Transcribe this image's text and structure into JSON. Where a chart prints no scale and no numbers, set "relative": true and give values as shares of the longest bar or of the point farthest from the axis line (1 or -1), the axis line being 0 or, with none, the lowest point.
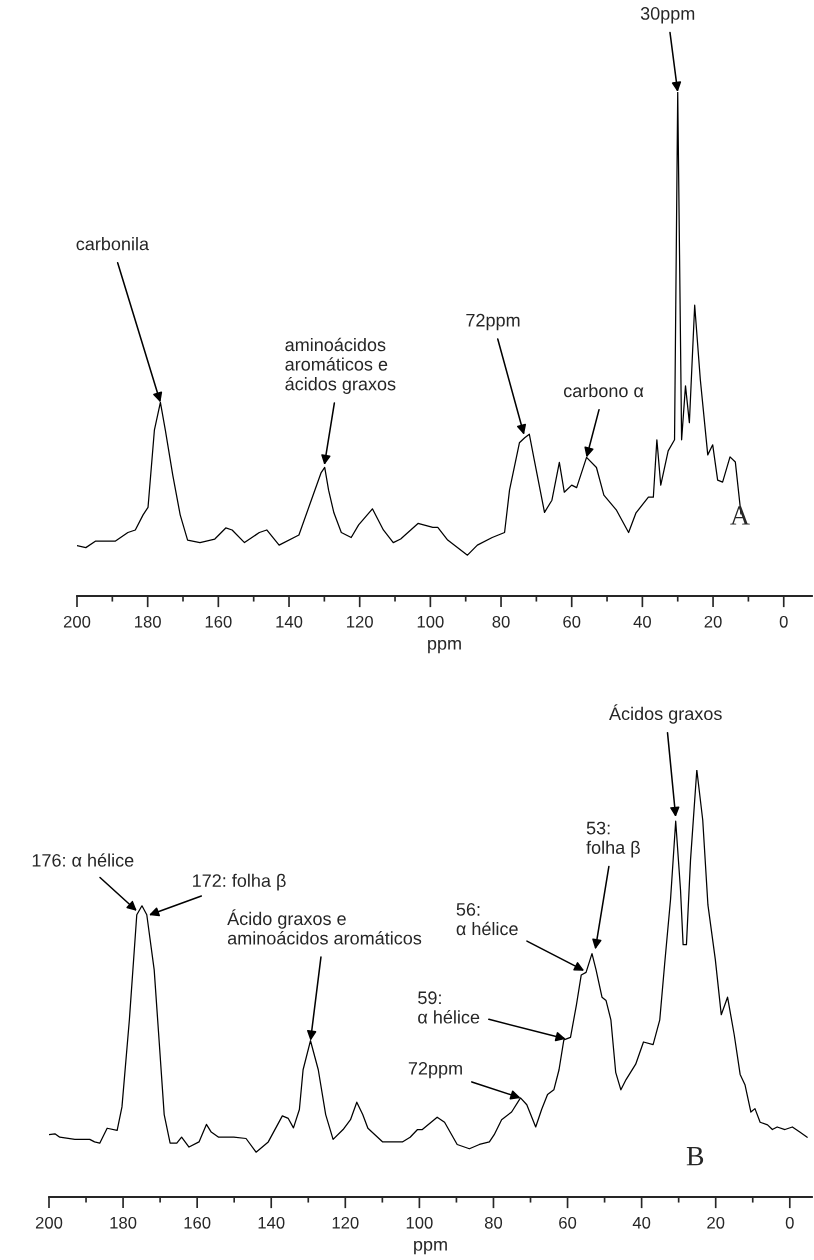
{
  "chart_data": [
    {
      "type": "line",
      "relative": true,
      "xlabel": "ppm",
      "xlim": [
        200,
        -8
      ],
      "xticks": [
        200,
        {
          "value": 190,
          "label": null
        },
        180,
        {
          "value": 170,
          "label": null
        },
        160,
        {
          "value": 150,
          "label": null
        },
        140,
        {
          "value": 130,
          "label": null
        },
        120,
        {
          "value": 110,
          "label": null
        },
        100,
        {
          "value": 90,
          "label": null
        },
        80,
        {
          "value": 70,
          "label": null
        },
        60,
        {
          "value": 50,
          "label": null
        },
        40,
        {
          "value": 30,
          "label": null
        },
        20,
        {
          "value": 10,
          "label": null
        },
        0
      ],
      "tick_labels": "x",
      "grid": false,
      "legend": false,
      "series": [
        {
          "color": "#000000",
          "x": [
            200.0,
            197.5,
            194.7,
            189.1,
            185.6,
            183.5,
            181.3,
            179.9,
            178.1,
            176.4,
            175.0,
            172.9,
            170.8,
            168.7,
            165.2,
            161.0,
            157.9,
            156.1,
            152.6,
            148.4,
            146.3,
            142.8,
            137.2,
            133.7,
            130.9,
            129.9,
            128.8,
            127.3,
            125.2,
            122.4,
            120.3,
            116.4,
            113.3,
            110.5,
            108.4,
            103.5,
            99.3,
            97.9,
            95.1,
            89.5,
            86.7,
            82.5,
            79.0,
            77.6,
            74.8,
            73.3,
            72.0,
            70.6,
            67.7,
            65.6,
            63.5,
            62.1,
            60.0,
            58.6,
            55.8,
            53.0,
            50.9,
            47.4,
            43.9,
            41.8,
            38.3,
            36.9,
            35.9,
            34.8,
            32.7,
            30.9,
            30.0,
            28.9,
            27.8,
            26.7,
            25.2,
            23.6,
            21.5,
            20.1,
            18.7,
            17.3,
            15.2,
            13.7,
            12.1
          ],
          "values": [
            0.1,
            0.096,
            0.109,
            0.109,
            0.126,
            0.131,
            0.161,
            0.176,
            0.329,
            0.384,
            0.329,
            0.24,
            0.161,
            0.111,
            0.106,
            0.113,
            0.135,
            0.131,
            0.106,
            0.126,
            0.131,
            0.101,
            0.121,
            0.19,
            0.245,
            0.255,
            0.21,
            0.165,
            0.126,
            0.116,
            0.141,
            0.173,
            0.131,
            0.106,
            0.113,
            0.144,
            0.136,
            0.136,
            0.111,
            0.081,
            0.101,
            0.116,
            0.126,
            0.21,
            0.304,
            0.314,
            0.321,
            0.27,
            0.166,
            0.19,
            0.265,
            0.206,
            0.22,
            0.215,
            0.275,
            0.255,
            0.2,
            0.171,
            0.126,
            0.165,
            0.196,
            0.196,
            0.31,
            0.22,
            0.288,
            0.31,
            1.0,
            0.31,
            0.417,
            0.344,
            0.577,
            0.429,
            0.28,
            0.3,
            0.23,
            0.226,
            0.276,
            0.266,
            0.163
          ]
        }
      ],
      "annotations": [
        {
          "text": "30ppm",
          "x": 30.0,
          "y": 1.0
        },
        {
          "text": "carbonila",
          "x": 176.4,
          "y": 0.384
        },
        {
          "text": "aminoácidos\naromáticos e\nácidos graxos",
          "x": 130.0,
          "y": 0.26
        },
        {
          "text": "72ppm",
          "x": 73.5,
          "y": 0.32
        },
        {
          "text": "carbono α",
          "x": 55.8,
          "y": 0.275
        },
        "A"
      ]
    },
    {
      "type": "line",
      "relative": true,
      "xlabel": "ppm",
      "xlim": [
        200,
        -6
      ],
      "xticks": [
        200,
        {
          "value": 190,
          "label": null
        },
        180,
        {
          "value": 170,
          "label": null
        },
        160,
        {
          "value": 150,
          "label": null
        },
        140,
        {
          "value": 130,
          "label": null
        },
        120,
        {
          "value": 110,
          "label": null
        },
        100,
        {
          "value": 90,
          "label": null
        },
        80,
        {
          "value": 70,
          "label": null
        },
        60,
        {
          "value": 50,
          "label": null
        },
        40,
        {
          "value": 30,
          "label": null
        },
        20,
        {
          "value": 10,
          "label": null
        },
        0
      ],
      "tick_labels": "x",
      "grid": false,
      "legend": false,
      "series": [
        {
          "color": "#000000",
          "x": [
            200.0,
            198.4,
            197.1,
            193.0,
            189.0,
            187.7,
            186.3,
            184.3,
            181.6,
            180.3,
            178.3,
            176.3,
            174.9,
            173.6,
            171.6,
            170.2,
            168.9,
            167.3,
            165.5,
            164.2,
            162.2,
            159.5,
            157.5,
            156.2,
            154.2,
            150.1,
            146.8,
            144.1,
            140.8,
            137.0,
            135.4,
            134.0,
            132.4,
            131.4,
            129.4,
            127.3,
            125.3,
            123.3,
            120.6,
            118.6,
            116.9,
            115.3,
            113.9,
            109.9,
            104.6,
            102.5,
            100.5,
            99.2,
            95.2,
            93.2,
            89.8,
            86.5,
            83.8,
            81.1,
            79.8,
            77.8,
            75.1,
            72.7,
            71.0,
            68.6,
            67.0,
            65.4,
            63.7,
            62.3,
            61.0,
            59.2,
            57.6,
            56.3,
            55.0,
            53.4,
            52.3,
            50.7,
            49.6,
            48.3,
            47.0,
            45.6,
            44.2,
            41.6,
            39.5,
            36.9,
            35.1,
            33.8,
            32.2,
            30.8,
            29.5,
            28.8,
            27.9,
            26.8,
            25.1,
            23.5,
            22.1,
            20.1,
            18.5,
            16.8,
            15.0,
            13.4,
            12.1,
            10.5,
            9.4,
            8.0,
            6.0,
            4.7,
            3.4,
            1.3,
            -0.7,
            -2.7,
            -4.7
          ],
          "values": [
            0.146,
            0.148,
            0.14,
            0.135,
            0.135,
            0.129,
            0.126,
            0.161,
            0.156,
            0.211,
            0.415,
            0.661,
            0.682,
            0.661,
            0.532,
            0.357,
            0.193,
            0.126,
            0.126,
            0.14,
            0.117,
            0.129,
            0.17,
            0.152,
            0.14,
            0.14,
            0.137,
            0.105,
            0.129,
            0.19,
            0.184,
            0.162,
            0.205,
            0.298,
            0.366,
            0.298,
            0.193,
            0.135,
            0.158,
            0.181,
            0.222,
            0.193,
            0.161,
            0.129,
            0.129,
            0.14,
            0.158,
            0.158,
            0.187,
            0.175,
            0.123,
            0.113,
            0.123,
            0.129,
            0.146,
            0.181,
            0.199,
            0.232,
            0.216,
            0.164,
            0.205,
            0.24,
            0.251,
            0.298,
            0.368,
            0.374,
            0.45,
            0.52,
            0.526,
            0.57,
            0.532,
            0.468,
            0.46,
            0.415,
            0.292,
            0.251,
            0.275,
            0.311,
            0.363,
            0.357,
            0.415,
            0.544,
            0.696,
            0.88,
            0.719,
            0.591,
            0.591,
            0.789,
            1.0,
            0.883,
            0.684,
            0.556,
            0.427,
            0.468,
            0.38,
            0.287,
            0.263,
            0.199,
            0.207,
            0.175,
            0.169,
            0.158,
            0.164,
            0.158,
            0.164,
            0.152,
            0.14
          ]
        }
      ],
      "annotations": [
        {
          "text": "176: α hélice",
          "x": 176.3,
          "y": 0.67
        },
        {
          "text": "172: folha β",
          "x": 173.0,
          "y": 0.66
        },
        {
          "text": "Ácido graxos e\naminoácidos aromáticos",
          "x": 129.4,
          "y": 0.366
        },
        {
          "text": "72ppm",
          "x": 72.7,
          "y": 0.232
        },
        {
          "text": "59:\nα hélice",
          "x": 60.5,
          "y": 0.37
        },
        {
          "text": "56:\nα hélice",
          "x": 55.5,
          "y": 0.53
        },
        {
          "text": "53:\nfolha β",
          "x": 52.5,
          "y": 0.58
        },
        {
          "text": "Ácidos graxos",
          "x": 30.8,
          "y": 0.89
        },
        "B"
      ]
    }
  ]
}
